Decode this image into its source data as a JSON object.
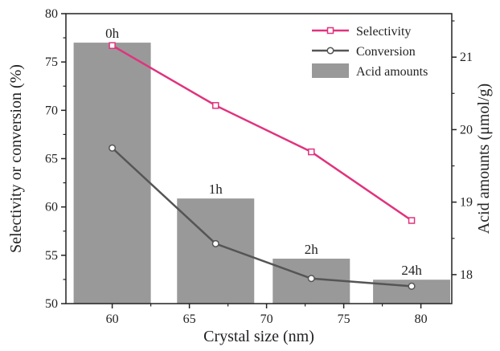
{
  "chart_data": {
    "type": "bar+line",
    "xlabel": "Crystal size (nm)",
    "ylabel_left": "Selectivity or conversion (%)",
    "ylabel_right": "Acid amounts (μmol/g)",
    "xlim": [
      57,
      82
    ],
    "xticks": [
      60,
      65,
      70,
      75,
      80
    ],
    "ylim_left": [
      50,
      80
    ],
    "yticks_left": [
      50,
      55,
      60,
      65,
      70,
      75,
      80
    ],
    "ylim_right": [
      17.6,
      21.6
    ],
    "yticks_right": [
      18,
      19,
      20,
      21
    ],
    "legend_position": "top-right",
    "bars": {
      "name": "Acid amounts",
      "axis": "right",
      "color": "#999999",
      "width": 5,
      "x": [
        60,
        66.7,
        72.9,
        79.4
      ],
      "values": [
        21.2,
        19.05,
        18.22,
        17.93
      ],
      "labels": [
        "0h",
        "1h",
        "2h",
        "24h"
      ]
    },
    "series": [
      {
        "name": "Selectivity",
        "axis": "left",
        "color": "#e0337e",
        "marker": "open-square",
        "x": [
          60,
          66.7,
          72.9,
          79.4
        ],
        "values": [
          76.7,
          70.5,
          65.7,
          58.6
        ]
      },
      {
        "name": "Conversion",
        "axis": "left",
        "color": "#555555",
        "marker": "open-circle",
        "x": [
          60,
          66.7,
          72.9,
          79.4
        ],
        "values": [
          66.1,
          56.2,
          52.6,
          51.8
        ]
      }
    ]
  }
}
